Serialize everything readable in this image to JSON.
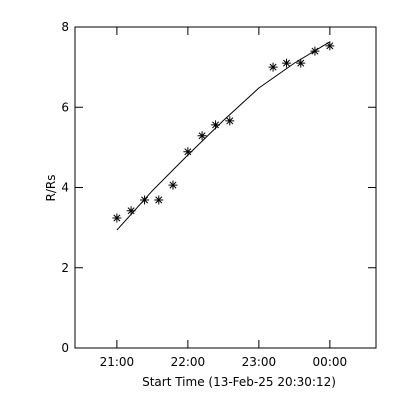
{
  "chart_data": {
    "type": "scatter",
    "xlabel": "Start Time (13-Feb-25 20:30:12)",
    "ylabel": "R/Rs",
    "xlim": [
      20.41,
      24.65
    ],
    "ylim": [
      0,
      8
    ],
    "xticks": [
      {
        "value": 21,
        "label": "21:00"
      },
      {
        "value": 22,
        "label": "22:00"
      },
      {
        "value": 23,
        "label": "23:00"
      },
      {
        "value": 24,
        "label": "00:00"
      }
    ],
    "yticks": [
      0,
      2,
      4,
      6,
      8
    ],
    "series": [
      {
        "color": "#000000",
        "marker": "asterisk",
        "x": [
          21.0,
          21.2,
          21.39,
          21.59,
          21.79,
          22.0,
          22.2,
          22.39,
          22.59,
          23.2,
          23.39,
          23.59,
          23.79,
          24.0
        ],
        "values": [
          3.24,
          3.42,
          3.69,
          3.69,
          4.06,
          4.89,
          5.29,
          5.56,
          5.66,
          7.0,
          7.1,
          7.1,
          7.4,
          7.53
        ]
      },
      {
        "color": "#000000",
        "marker": "line",
        "x": [
          21.0,
          21.5,
          22.0,
          22.5,
          23.0,
          23.5,
          24.0
        ],
        "values": [
          2.94,
          3.92,
          4.81,
          5.67,
          6.48,
          7.1,
          7.63
        ]
      }
    ]
  }
}
